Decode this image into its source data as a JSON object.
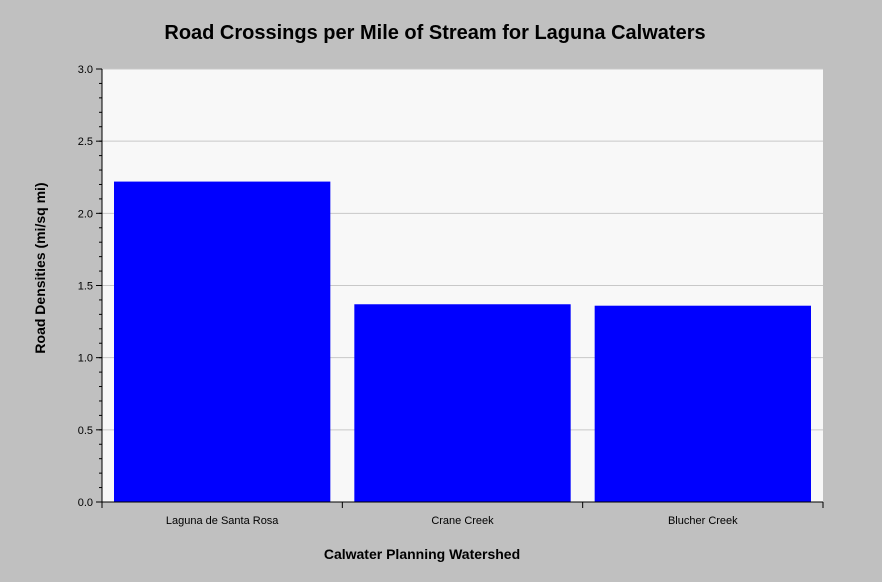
{
  "chart_data": {
    "type": "bar",
    "title": "Road Crossings per Mile of Stream for Laguna Calwaters",
    "xlabel": "Calwater Planning Watershed",
    "ylabel": "Road Densities (mi/sq mi)",
    "categories": [
      "Laguna de Santa Rosa",
      "Crane Creek",
      "Blucher Creek"
    ],
    "values": [
      2.22,
      1.37,
      1.36
    ],
    "ylim": [
      0,
      3.0
    ],
    "yticks": [
      "0.0",
      "0.5",
      "1.0",
      "1.5",
      "2.0",
      "2.5",
      "3.0"
    ],
    "grid": true,
    "legend": "none",
    "colors": {
      "bar": "#0000ff",
      "plot_background": "#f8f8f8",
      "page_background": "#c0c0c0",
      "grid": "#c8c8c8"
    }
  }
}
